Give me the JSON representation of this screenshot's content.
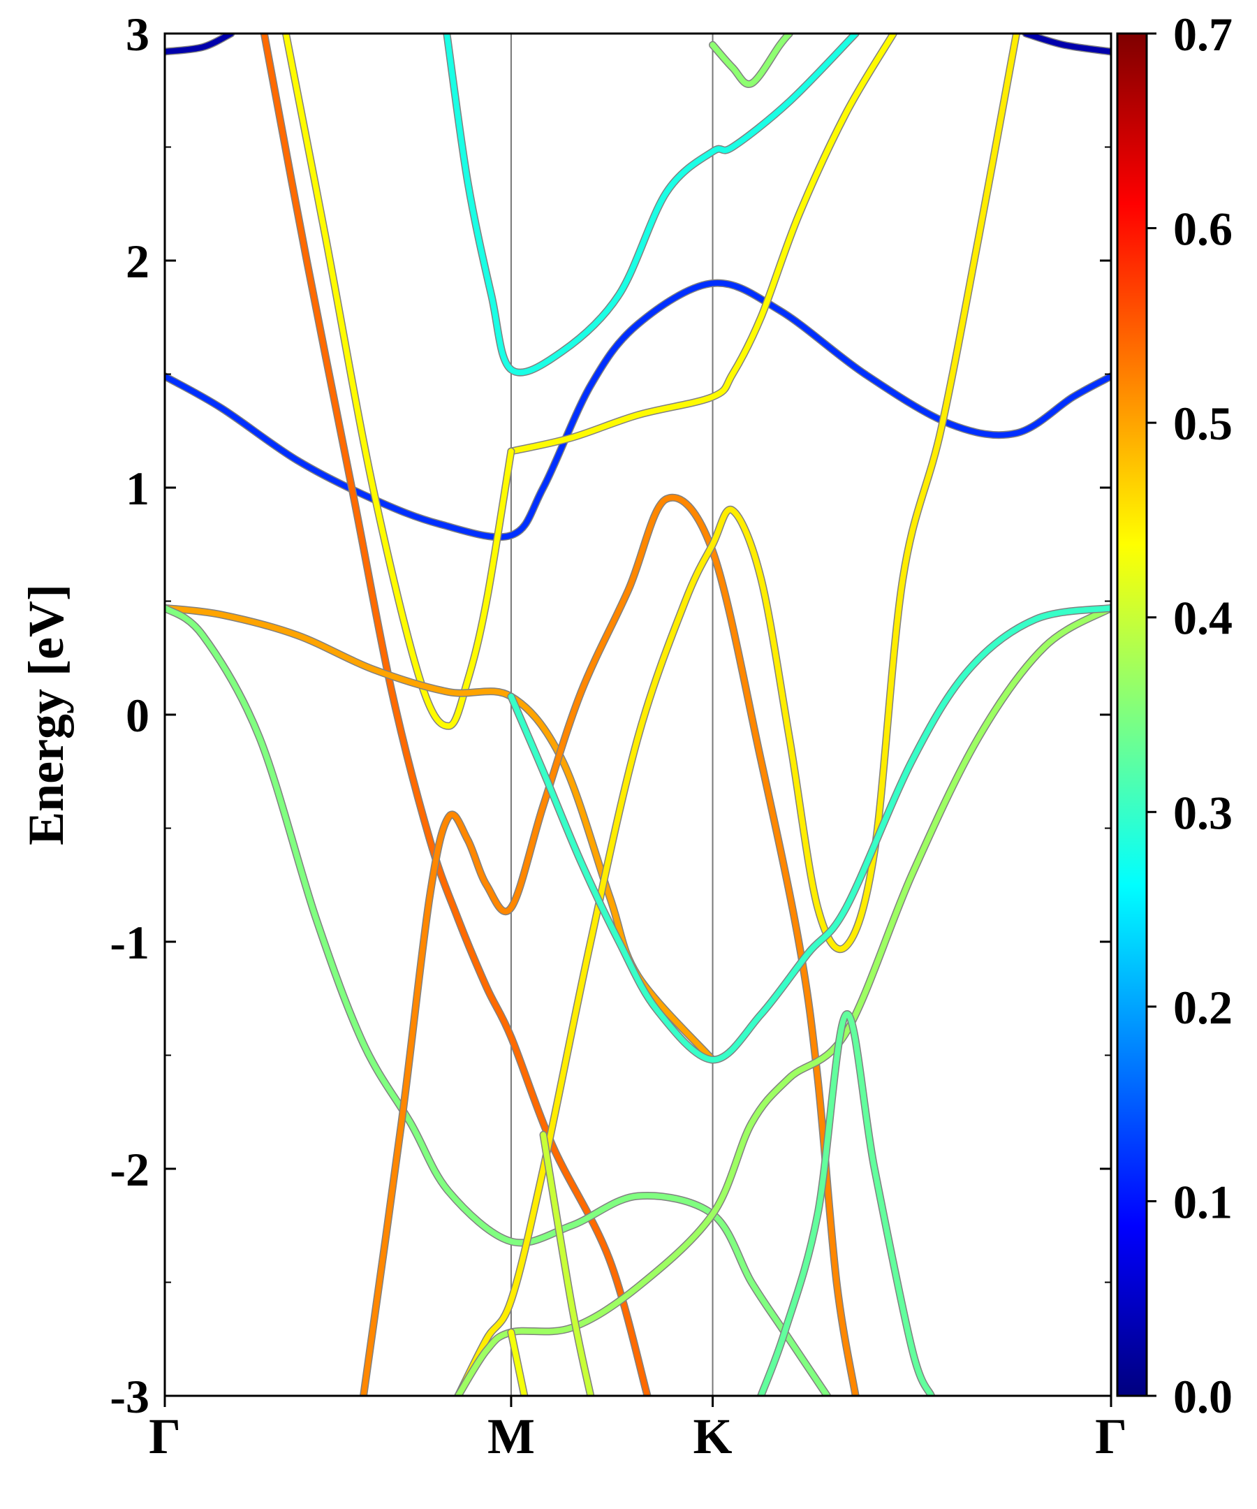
{
  "chart_data": {
    "type": "line",
    "title": "",
    "xlabel": "",
    "ylabel": "Energy [eV]",
    "ylim": [
      -3,
      3
    ],
    "yticks": [
      -3,
      -2,
      -1,
      0,
      1,
      2,
      3
    ],
    "x_tick_labels": [
      "Γ",
      "M",
      "K",
      "Γ"
    ],
    "x_tick_positions": [
      0,
      0.366,
      0.579,
      1.0
    ],
    "grid": false,
    "colorbar": {
      "colormap": "jet",
      "range": [
        0.0,
        0.7
      ],
      "tick_labels": [
        "0.0",
        "0.1",
        "0.2",
        "0.3",
        "0.4",
        "0.5",
        "0.6",
        "0.7"
      ]
    },
    "series": [
      {
        "c": 0.03,
        "points": [
          [
            0.0,
            2.92
          ],
          [
            0.04,
            2.94
          ],
          [
            0.07,
            3.0
          ]
        ]
      },
      {
        "c": 0.03,
        "points": [
          [
            0.91,
            3.0
          ],
          [
            0.95,
            2.95
          ],
          [
            1.0,
            2.92
          ]
        ]
      },
      {
        "c": 0.12,
        "points": [
          [
            0.0,
            1.49
          ],
          [
            0.06,
            1.35
          ],
          [
            0.14,
            1.12
          ],
          [
            0.22,
            0.95
          ],
          [
            0.29,
            0.84
          ],
          [
            0.366,
            0.79
          ],
          [
            0.4,
            1.0
          ],
          [
            0.45,
            1.45
          ],
          [
            0.5,
            1.72
          ],
          [
            0.579,
            1.9
          ],
          [
            0.65,
            1.78
          ],
          [
            0.74,
            1.5
          ],
          [
            0.83,
            1.28
          ],
          [
            0.9,
            1.24
          ],
          [
            0.96,
            1.4
          ],
          [
            1.0,
            1.49
          ]
        ]
      },
      {
        "c": 0.28,
        "points": [
          [
            0.298,
            3.0
          ],
          [
            0.32,
            2.35
          ],
          [
            0.345,
            1.85
          ],
          [
            0.366,
            1.52
          ],
          [
            0.42,
            1.6
          ],
          [
            0.48,
            1.85
          ],
          [
            0.53,
            2.3
          ],
          [
            0.579,
            2.48
          ],
          [
            0.6,
            2.5
          ],
          [
            0.66,
            2.7
          ],
          [
            0.73,
            3.0
          ]
        ]
      },
      {
        "c": 0.44,
        "points": [
          [
            0.366,
            1.16
          ],
          [
            0.43,
            1.22
          ],
          [
            0.5,
            1.32
          ],
          [
            0.579,
            1.4
          ],
          [
            0.6,
            1.5
          ],
          [
            0.63,
            1.75
          ],
          [
            0.67,
            2.2
          ],
          [
            0.72,
            2.65
          ],
          [
            0.77,
            3.0
          ]
        ]
      },
      {
        "c": 0.54,
        "points": [
          [
            0.105,
            3.0
          ],
          [
            0.15,
            2.0
          ],
          [
            0.2,
            0.95
          ],
          [
            0.24,
            0.1
          ],
          [
            0.28,
            -0.55
          ],
          [
            0.31,
            -0.9
          ],
          [
            0.34,
            -1.2
          ],
          [
            0.366,
            -1.42
          ],
          [
            0.41,
            -1.9
          ],
          [
            0.47,
            -2.4
          ],
          [
            0.51,
            -3.0
          ]
        ]
      },
      {
        "c": 0.44,
        "points": [
          [
            0.128,
            3.0
          ],
          [
            0.17,
            2.1
          ],
          [
            0.22,
            1.0
          ],
          [
            0.27,
            0.15
          ],
          [
            0.3,
            -0.05
          ],
          [
            0.32,
            0.15
          ],
          [
            0.34,
            0.5
          ],
          [
            0.366,
            1.16
          ]
        ]
      },
      {
        "c": 0.5,
        "points": [
          [
            0.0,
            0.47
          ],
          [
            0.06,
            0.44
          ],
          [
            0.14,
            0.35
          ],
          [
            0.22,
            0.2
          ],
          [
            0.3,
            0.1
          ],
          [
            0.366,
            0.08
          ],
          [
            0.42,
            -0.2
          ],
          [
            0.47,
            -0.8
          ],
          [
            0.5,
            -1.15
          ],
          [
            0.579,
            -1.52
          ]
        ]
      },
      {
        "c": 0.35,
        "points": [
          [
            0.0,
            0.47
          ],
          [
            0.04,
            0.35
          ],
          [
            0.1,
            -0.1
          ],
          [
            0.16,
            -0.9
          ],
          [
            0.21,
            -1.45
          ],
          [
            0.26,
            -1.8
          ],
          [
            0.3,
            -2.1
          ],
          [
            0.366,
            -2.32
          ],
          [
            0.43,
            -2.25
          ],
          [
            0.5,
            -2.12
          ],
          [
            0.579,
            -2.2
          ],
          [
            0.62,
            -2.5
          ],
          [
            0.655,
            -2.72
          ],
          [
            0.7,
            -3.0
          ]
        ]
      },
      {
        "c": 0.52,
        "points": [
          [
            0.21,
            -3.0
          ],
          [
            0.25,
            -1.8
          ],
          [
            0.28,
            -0.8
          ],
          [
            0.3,
            -0.45
          ],
          [
            0.32,
            -0.55
          ],
          [
            0.34,
            -0.75
          ],
          [
            0.366,
            -0.85
          ],
          [
            0.4,
            -0.4
          ],
          [
            0.44,
            0.1
          ],
          [
            0.49,
            0.55
          ],
          [
            0.53,
            0.95
          ],
          [
            0.579,
            0.72
          ],
          [
            0.63,
            -0.2
          ],
          [
            0.67,
            -1.0
          ],
          [
            0.69,
            -1.6
          ],
          [
            0.71,
            -2.5
          ],
          [
            0.73,
            -3.0
          ]
        ]
      },
      {
        "c": 0.45,
        "points": [
          [
            0.31,
            -3.0
          ],
          [
            0.34,
            -2.75
          ],
          [
            0.366,
            -2.58
          ],
          [
            0.4,
            -2.0
          ],
          [
            0.45,
            -1.0
          ],
          [
            0.5,
            -0.1
          ],
          [
            0.55,
            0.5
          ],
          [
            0.579,
            0.75
          ],
          [
            0.6,
            0.9
          ],
          [
            0.63,
            0.6
          ],
          [
            0.66,
            -0.1
          ],
          [
            0.69,
            -0.85
          ],
          [
            0.72,
            -1.02
          ],
          [
            0.75,
            -0.6
          ],
          [
            0.78,
            0.6
          ],
          [
            0.82,
            1.25
          ],
          [
            0.86,
            2.1
          ],
          [
            0.9,
            3.0
          ]
        ]
      },
      {
        "c": 0.37,
        "points": [
          [
            0.31,
            -3.0
          ],
          [
            0.34,
            -2.8
          ],
          [
            0.366,
            -2.72
          ],
          [
            0.43,
            -2.7
          ],
          [
            0.5,
            -2.52
          ],
          [
            0.579,
            -2.2
          ],
          [
            0.62,
            -1.8
          ],
          [
            0.66,
            -1.6
          ],
          [
            0.72,
            -1.4
          ],
          [
            0.79,
            -0.7
          ],
          [
            0.86,
            -0.1
          ],
          [
            0.93,
            0.3
          ],
          [
            1.0,
            0.47
          ]
        ]
      },
      {
        "c": 0.43,
        "points": [
          [
            0.366,
            -2.72
          ],
          [
            0.38,
            -3.0
          ]
        ]
      },
      {
        "c": 0.3,
        "points": [
          [
            0.366,
            0.08
          ],
          [
            0.4,
            -0.25
          ],
          [
            0.44,
            -0.65
          ],
          [
            0.48,
            -1.0
          ],
          [
            0.52,
            -1.3
          ],
          [
            0.579,
            -1.52
          ],
          [
            0.63,
            -1.32
          ],
          [
            0.68,
            -1.05
          ],
          [
            0.72,
            -0.85
          ],
          [
            0.79,
            -0.2
          ],
          [
            0.85,
            0.2
          ],
          [
            0.92,
            0.42
          ],
          [
            1.0,
            0.47
          ]
        ]
      },
      {
        "c": 0.4,
        "points": [
          [
            0.4,
            -1.85
          ],
          [
            0.43,
            -2.6
          ],
          [
            0.45,
            -3.0
          ]
        ]
      },
      {
        "c": 0.33,
        "points": [
          [
            0.63,
            -3.0
          ],
          [
            0.655,
            -2.72
          ],
          [
            0.69,
            -2.2
          ],
          [
            0.72,
            -1.32
          ],
          [
            0.75,
            -2.0
          ],
          [
            0.79,
            -2.8
          ],
          [
            0.81,
            -3.0
          ]
        ]
      },
      {
        "c": 0.36,
        "points": [
          [
            0.579,
            2.95
          ],
          [
            0.6,
            2.85
          ],
          [
            0.62,
            2.78
          ],
          [
            0.65,
            2.95
          ],
          [
            0.66,
            3.0
          ]
        ]
      }
    ]
  }
}
